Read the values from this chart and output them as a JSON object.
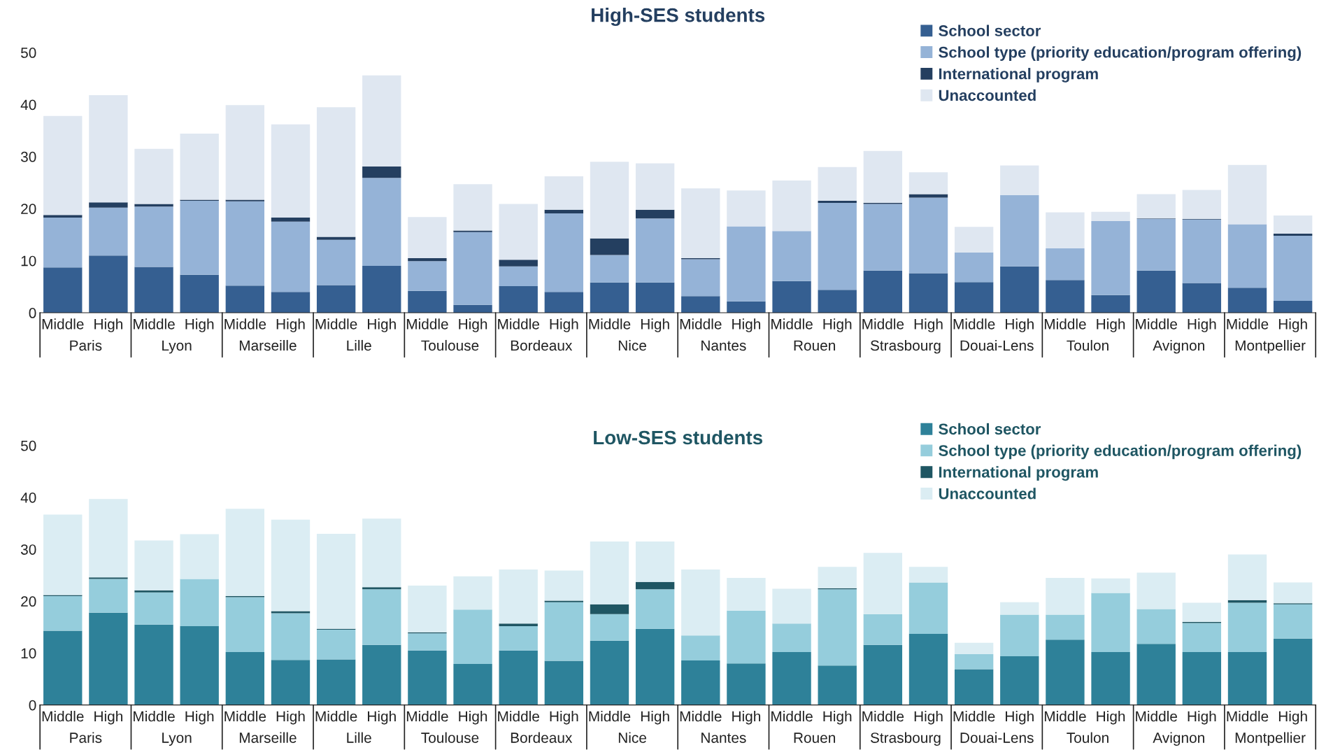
{
  "chart_data": [
    {
      "type": "bar",
      "stacked": true,
      "title": "High-SES students",
      "legend": "top right",
      "grid": false,
      "categories": [
        "Middle",
        "High",
        "Middle",
        "High",
        "Middle",
        "High",
        "Middle",
        "High",
        "Middle",
        "High",
        "Middle",
        "High",
        "Middle",
        "High",
        "Middle",
        "High",
        "Middle",
        "High",
        "Middle",
        "High",
        "Middle",
        "High",
        "Middle",
        "High",
        "Middle",
        "High",
        "Middle",
        "High"
      ],
      "annotations": [
        "Paris",
        "Lyon",
        "Marseille",
        "Lille",
        "Toulouse",
        "Bordeaux",
        "Nice",
        "Nantes",
        "Rouen",
        "Strasbourg",
        "Douai-Lens",
        "Toulon",
        "Avignon",
        "Montpellier"
      ],
      "ylim": [
        0,
        50
      ],
      "yticks": [
        0,
        10,
        20,
        30,
        40,
        50
      ],
      "series": [
        {
          "name": "School sector",
          "color": "#355f91",
          "values": [
            8.7,
            11.0,
            8.8,
            7.3,
            5.2,
            4.0,
            5.3,
            9.0,
            4.2,
            1.5,
            5.1,
            4.0,
            5.8,
            5.8,
            3.2,
            2.2,
            6.1,
            4.4,
            8.1,
            7.6,
            5.9,
            8.9,
            6.3,
            3.4,
            8.1,
            5.7,
            4.8,
            2.3
          ]
        },
        {
          "name": "School type (priority education/program offering)",
          "color": "#95b3d7",
          "values": [
            9.6,
            9.2,
            11.6,
            14.2,
            16.2,
            13.5,
            8.7,
            16.9,
            5.7,
            14.0,
            3.8,
            15.1,
            5.3,
            12.3,
            7.1,
            14.4,
            9.6,
            16.7,
            12.8,
            14.5,
            5.7,
            13.7,
            6.1,
            14.2,
            9.9,
            12.2,
            12.2,
            12.5
          ]
        },
        {
          "name": "International program",
          "color": "#243f60",
          "values": [
            0.5,
            1.0,
            0.5,
            0.2,
            0.3,
            0.8,
            0.6,
            2.2,
            0.6,
            0.3,
            1.3,
            0.7,
            3.2,
            1.7,
            0.2,
            0,
            0,
            0.4,
            0.2,
            0.7,
            0,
            0,
            0,
            0,
            0.1,
            0.1,
            0,
            0.4
          ]
        },
        {
          "name": "Unaccounted",
          "color": "#dfe7f1",
          "values": [
            19.0,
            20.6,
            10.6,
            12.7,
            18.2,
            17.9,
            24.9,
            17.5,
            7.9,
            8.9,
            10.7,
            6.4,
            14.7,
            8.9,
            13.4,
            6.9,
            9.7,
            6.5,
            10.0,
            4.2,
            4.9,
            5.7,
            6.9,
            1.8,
            4.7,
            5.6,
            11.4,
            3.5
          ]
        }
      ]
    },
    {
      "type": "bar",
      "stacked": true,
      "title": "Low-SES students",
      "legend": "top right",
      "grid": false,
      "categories": [
        "Middle",
        "High",
        "Middle",
        "High",
        "Middle",
        "High",
        "Middle",
        "High",
        "Middle",
        "High",
        "Middle",
        "High",
        "Middle",
        "High",
        "Middle",
        "High",
        "Middle",
        "High",
        "Middle",
        "High",
        "Middle",
        "High",
        "Middle",
        "High",
        "Middle",
        "High",
        "Middle",
        "High"
      ],
      "annotations": [
        "Paris",
        "Lyon",
        "Marseille",
        "Lille",
        "Toulouse",
        "Bordeaux",
        "Nice",
        "Nantes",
        "Rouen",
        "Strasbourg",
        "Douai-Lens",
        "Toulon",
        "Avignon",
        "Montpellier"
      ],
      "ylim": [
        0,
        50
      ],
      "yticks": [
        0,
        10,
        20,
        30,
        40,
        50
      ],
      "series": [
        {
          "name": "School sector",
          "color": "#2e8199",
          "values": [
            14.3,
            17.8,
            15.5,
            15.2,
            10.2,
            8.7,
            8.8,
            11.6,
            10.5,
            7.9,
            10.5,
            8.5,
            12.4,
            14.7,
            8.6,
            8.0,
            10.2,
            7.6,
            11.6,
            13.7,
            6.9,
            9.4,
            12.6,
            10.2,
            11.8,
            10.2,
            10.2,
            12.8
          ]
        },
        {
          "name": "School type (priority education/program offering)",
          "color": "#95cddc",
          "values": [
            6.7,
            6.5,
            6.2,
            9.1,
            10.6,
            9.0,
            5.7,
            10.7,
            3.3,
            10.5,
            4.7,
            11.3,
            5.1,
            7.6,
            4.8,
            10.2,
            5.5,
            14.7,
            5.9,
            9.9,
            2.9,
            8.0,
            4.8,
            11.4,
            6.7,
            5.6,
            9.5,
            6.6
          ]
        },
        {
          "name": "International program",
          "color": "#1f5663",
          "values": [
            0.2,
            0.3,
            0.4,
            0,
            0.2,
            0.4,
            0.2,
            0.4,
            0.2,
            0,
            0.5,
            0.3,
            1.9,
            1.4,
            0,
            0,
            0,
            0.2,
            0,
            0,
            0,
            0,
            0,
            0,
            0,
            0.2,
            0.5,
            0.2
          ]
        },
        {
          "name": "Unaccounted",
          "color": "#dbedf3",
          "values": [
            15.5,
            15.1,
            9.6,
            8.6,
            16.8,
            17.6,
            18.3,
            13.2,
            9.0,
            6.4,
            10.4,
            5.8,
            12.1,
            7.8,
            12.7,
            6.3,
            6.7,
            4.1,
            11.8,
            3.0,
            2.2,
            2.4,
            7.1,
            2.8,
            7.0,
            3.7,
            8.8,
            4.0
          ]
        }
      ]
    }
  ]
}
